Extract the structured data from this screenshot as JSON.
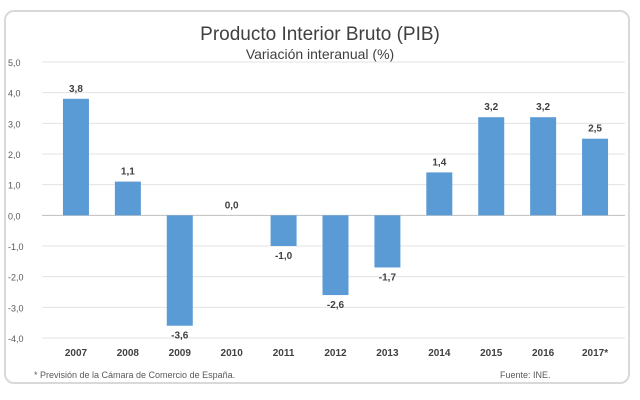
{
  "chart_data": {
    "type": "bar",
    "title": "Producto Interior Bruto (PIB)",
    "subtitle": "Variación interanual (%)",
    "categories": [
      "2007",
      "2008",
      "2009",
      "2010",
      "2011",
      "2012",
      "2013",
      "2014",
      "2015",
      "2016",
      "2017*"
    ],
    "values": [
      3.8,
      1.1,
      -3.6,
      0.0,
      -1.0,
      -2.6,
      -1.7,
      1.4,
      3.2,
      3.2,
      2.5
    ],
    "data_labels": [
      "3,8",
      "1,1",
      "-3,6",
      "0,0",
      "-1,0",
      "-2,6",
      "-1,7",
      "1,4",
      "3,2",
      "3,2",
      "2,5"
    ],
    "yticks": [
      5,
      4,
      3,
      2,
      1,
      0,
      -1,
      -2,
      -3,
      -4
    ],
    "ytick_labels": [
      "5,0",
      "4,0",
      "3,0",
      "2,0",
      "1,0",
      "0,0",
      "-1,0",
      "-2,0",
      "-3,0",
      "-4,0"
    ],
    "ylim": [
      -4,
      5
    ],
    "xlabel": "",
    "ylabel": "",
    "grid": true,
    "bar_color": "#5b9bd5",
    "footnote": "* Previsión de la Cámara de Comercio de España.",
    "source": "Fuente: INE."
  }
}
